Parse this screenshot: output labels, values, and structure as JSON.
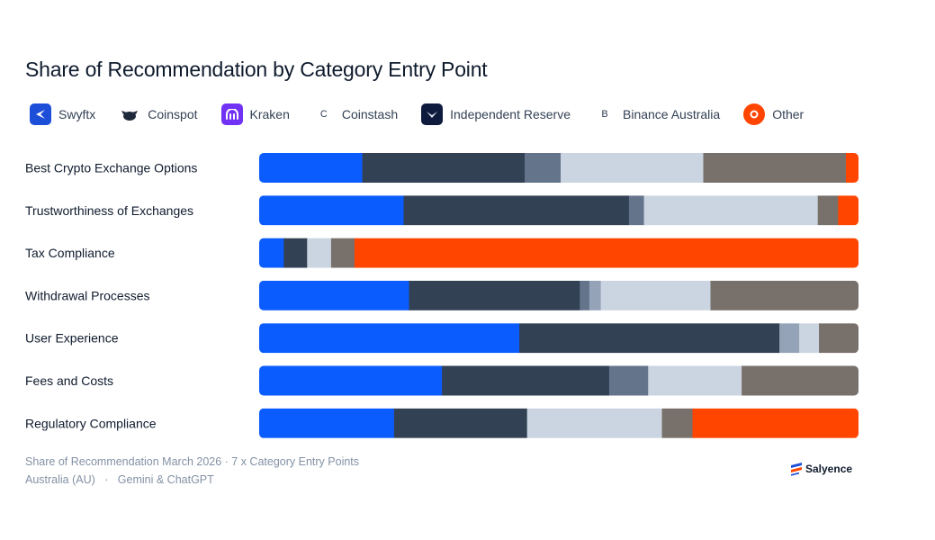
{
  "title": "Share of Recommendation by Category Entry Point",
  "legend": [
    {
      "label": "Swyftx",
      "icon": "swyftx-logo-icon",
      "color": "#0b5cff"
    },
    {
      "label": "Coinspot",
      "icon": "coinspot-logo-icon",
      "color": "#334155"
    },
    {
      "label": "Kraken",
      "icon": "kraken-logo-icon",
      "color": "#64748b"
    },
    {
      "label": "Coinstash",
      "icon": "C",
      "color": "#94a3b8"
    },
    {
      "label": "Independent Reserve",
      "icon": "independent-reserve-logo-icon",
      "color": "#cbd5e1"
    },
    {
      "label": "Binance Australia",
      "icon": "B",
      "color": "#78706b"
    },
    {
      "label": "Other",
      "icon": "other-logo-icon",
      "color": "#ff4500"
    }
  ],
  "chart_data": {
    "type": "bar",
    "orientation": "horizontal",
    "stacked": true,
    "normalized": true,
    "categories": [
      "Best Crypto Exchange Options",
      "Trustworthiness of Exchanges",
      "Tax Compliance",
      "Withdrawal Processes",
      "User Experience",
      "Fees and Costs",
      "Regulatory Compliance"
    ],
    "series": [
      {
        "name": "Swyftx",
        "values": [
          17.2,
          24.1,
          4.1,
          25.0,
          43.4,
          30.5,
          22.5
        ]
      },
      {
        "name": "Coinspot",
        "values": [
          27.1,
          37.6,
          3.9,
          28.5,
          43.4,
          27.9,
          22.2
        ]
      },
      {
        "name": "Kraken",
        "values": [
          6.0,
          2.5,
          0,
          1.6,
          0,
          6.5,
          0
        ]
      },
      {
        "name": "Coinstash",
        "values": [
          0,
          0,
          0,
          1.9,
          3.3,
          0,
          0
        ]
      },
      {
        "name": "Independent Reserve",
        "values": [
          23.8,
          29.0,
          4.0,
          18.3,
          3.3,
          15.6,
          22.5
        ]
      },
      {
        "name": "Binance Australia",
        "values": [
          23.8,
          3.4,
          3.9,
          24.7,
          6.6,
          19.5,
          5.1
        ]
      },
      {
        "name": "Other",
        "values": [
          2.1,
          3.4,
          84.1,
          0,
          0,
          0,
          27.7
        ]
      }
    ],
    "xlim": [
      0,
      100
    ]
  },
  "footer": {
    "line1": "Share of Recommendation March 2026 · 7 x Category Entry Points",
    "line2": "Australia (AU)   ·   Gemini & ChatGPT"
  },
  "brand": {
    "name": "Salyence"
  }
}
